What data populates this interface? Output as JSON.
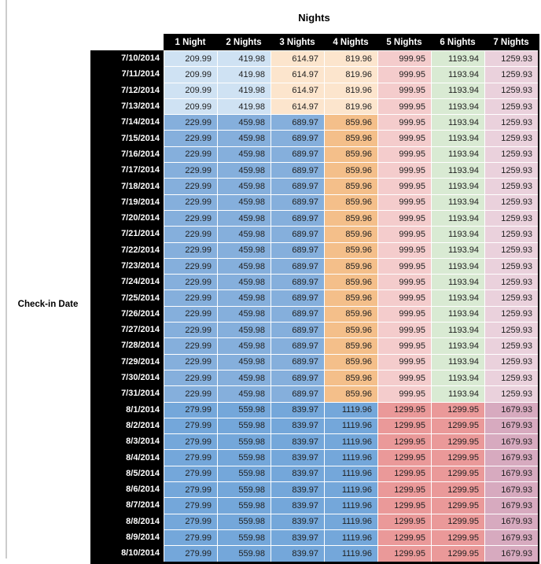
{
  "table": {
    "title": "Nights",
    "row_axis_label": "Check-in Date",
    "columns": [
      "1 Night",
      "2 Nights",
      "3 Nights",
      "4 Nights",
      "5 Nights",
      "6 Nights",
      "7 Nights"
    ],
    "rows": [
      {
        "date": "7/10/2014",
        "band": "early_july",
        "values": [
          "209.99",
          "419.98",
          "614.97",
          "819.96",
          "999.95",
          "1193.94",
          "1259.93"
        ]
      },
      {
        "date": "7/11/2014",
        "band": "early_july",
        "values": [
          "209.99",
          "419.98",
          "614.97",
          "819.96",
          "999.95",
          "1193.94",
          "1259.93"
        ]
      },
      {
        "date": "7/12/2014",
        "band": "early_july",
        "values": [
          "209.99",
          "419.98",
          "614.97",
          "819.96",
          "999.95",
          "1193.94",
          "1259.93"
        ]
      },
      {
        "date": "7/13/2014",
        "band": "early_july",
        "values": [
          "209.99",
          "419.98",
          "614.97",
          "819.96",
          "999.95",
          "1193.94",
          "1259.93"
        ]
      },
      {
        "date": "7/14/2014",
        "band": "mid_july",
        "values": [
          "229.99",
          "459.98",
          "689.97",
          "859.96",
          "999.95",
          "1193.94",
          "1259.93"
        ]
      },
      {
        "date": "7/15/2014",
        "band": "mid_july",
        "values": [
          "229.99",
          "459.98",
          "689.97",
          "859.96",
          "999.95",
          "1193.94",
          "1259.93"
        ]
      },
      {
        "date": "7/16/2014",
        "band": "mid_july",
        "values": [
          "229.99",
          "459.98",
          "689.97",
          "859.96",
          "999.95",
          "1193.94",
          "1259.93"
        ]
      },
      {
        "date": "7/17/2014",
        "band": "mid_july",
        "values": [
          "229.99",
          "459.98",
          "689.97",
          "859.96",
          "999.95",
          "1193.94",
          "1259.93"
        ]
      },
      {
        "date": "7/18/2014",
        "band": "mid_july",
        "values": [
          "229.99",
          "459.98",
          "689.97",
          "859.96",
          "999.95",
          "1193.94",
          "1259.93"
        ]
      },
      {
        "date": "7/19/2014",
        "band": "mid_july",
        "values": [
          "229.99",
          "459.98",
          "689.97",
          "859.96",
          "999.95",
          "1193.94",
          "1259.93"
        ]
      },
      {
        "date": "7/20/2014",
        "band": "mid_july",
        "values": [
          "229.99",
          "459.98",
          "689.97",
          "859.96",
          "999.95",
          "1193.94",
          "1259.93"
        ]
      },
      {
        "date": "7/21/2014",
        "band": "mid_july",
        "values": [
          "229.99",
          "459.98",
          "689.97",
          "859.96",
          "999.95",
          "1193.94",
          "1259.93"
        ]
      },
      {
        "date": "7/22/2014",
        "band": "mid_july",
        "values": [
          "229.99",
          "459.98",
          "689.97",
          "859.96",
          "999.95",
          "1193.94",
          "1259.93"
        ]
      },
      {
        "date": "7/23/2014",
        "band": "mid_july",
        "values": [
          "229.99",
          "459.98",
          "689.97",
          "859.96",
          "999.95",
          "1193.94",
          "1259.93"
        ]
      },
      {
        "date": "7/24/2014",
        "band": "mid_july",
        "values": [
          "229.99",
          "459.98",
          "689.97",
          "859.96",
          "999.95",
          "1193.94",
          "1259.93"
        ]
      },
      {
        "date": "7/25/2014",
        "band": "mid_july",
        "values": [
          "229.99",
          "459.98",
          "689.97",
          "859.96",
          "999.95",
          "1193.94",
          "1259.93"
        ]
      },
      {
        "date": "7/26/2014",
        "band": "mid_july",
        "values": [
          "229.99",
          "459.98",
          "689.97",
          "859.96",
          "999.95",
          "1193.94",
          "1259.93"
        ]
      },
      {
        "date": "7/27/2014",
        "band": "mid_july",
        "values": [
          "229.99",
          "459.98",
          "689.97",
          "859.96",
          "999.95",
          "1193.94",
          "1259.93"
        ]
      },
      {
        "date": "7/28/2014",
        "band": "mid_july",
        "values": [
          "229.99",
          "459.98",
          "689.97",
          "859.96",
          "999.95",
          "1193.94",
          "1259.93"
        ]
      },
      {
        "date": "7/29/2014",
        "band": "mid_july",
        "values": [
          "229.99",
          "459.98",
          "689.97",
          "859.96",
          "999.95",
          "1193.94",
          "1259.93"
        ]
      },
      {
        "date": "7/30/2014",
        "band": "mid_july",
        "values": [
          "229.99",
          "459.98",
          "689.97",
          "859.96",
          "999.95",
          "1193.94",
          "1259.93"
        ]
      },
      {
        "date": "7/31/2014",
        "band": "mid_july",
        "values": [
          "229.99",
          "459.98",
          "689.97",
          "859.96",
          "999.95",
          "1193.94",
          "1259.93"
        ]
      },
      {
        "date": "8/1/2014",
        "band": "august",
        "values": [
          "279.99",
          "559.98",
          "839.97",
          "1119.96",
          "1299.95",
          "1299.95",
          "1679.93"
        ]
      },
      {
        "date": "8/2/2014",
        "band": "august",
        "values": [
          "279.99",
          "559.98",
          "839.97",
          "1119.96",
          "1299.95",
          "1299.95",
          "1679.93"
        ]
      },
      {
        "date": "8/3/2014",
        "band": "august",
        "values": [
          "279.99",
          "559.98",
          "839.97",
          "1119.96",
          "1299.95",
          "1299.95",
          "1679.93"
        ]
      },
      {
        "date": "8/4/2014",
        "band": "august",
        "values": [
          "279.99",
          "559.98",
          "839.97",
          "1119.96",
          "1299.95",
          "1299.95",
          "1679.93"
        ]
      },
      {
        "date": "8/5/2014",
        "band": "august",
        "values": [
          "279.99",
          "559.98",
          "839.97",
          "1119.96",
          "1299.95",
          "1299.95",
          "1679.93"
        ]
      },
      {
        "date": "8/6/2014",
        "band": "august",
        "values": [
          "279.99",
          "559.98",
          "839.97",
          "1119.96",
          "1299.95",
          "1299.95",
          "1679.93"
        ]
      },
      {
        "date": "8/7/2014",
        "band": "august",
        "values": [
          "279.99",
          "559.98",
          "839.97",
          "1119.96",
          "1299.95",
          "1299.95",
          "1679.93"
        ]
      },
      {
        "date": "8/8/2014",
        "band": "august",
        "values": [
          "279.99",
          "559.98",
          "839.97",
          "1119.96",
          "1299.95",
          "1299.95",
          "1679.93"
        ]
      },
      {
        "date": "8/9/2014",
        "band": "august",
        "values": [
          "279.99",
          "559.98",
          "839.97",
          "1119.96",
          "1299.95",
          "1299.95",
          "1679.93"
        ]
      },
      {
        "date": "8/10/2014",
        "band": "august",
        "values": [
          "279.99",
          "559.98",
          "839.97",
          "1119.96",
          "1299.95",
          "1299.95",
          "1679.93"
        ]
      }
    ]
  },
  "colors": {
    "header_bg": "#000000",
    "header_text": "#ffffff",
    "date_bg": "#000000",
    "date_text": "#ffffff",
    "gridline": "#ffffff",
    "bands": {
      "early_july": [
        "#cfe2f3",
        "#cfe2f3",
        "#fce5cd",
        "#fce5cd",
        "#f4cccc",
        "#d9ead3",
        "#ead1dc"
      ],
      "mid_july": [
        "#85afdc",
        "#85afdc",
        "#85afdc",
        "#f4bf8a",
        "#f4cccc",
        "#d9ead3",
        "#ead1dc"
      ],
      "august": [
        "#74a7da",
        "#74a7da",
        "#74a7da",
        "#74a7da",
        "#ea9999",
        "#ea9999",
        "#d7aabf"
      ]
    }
  }
}
